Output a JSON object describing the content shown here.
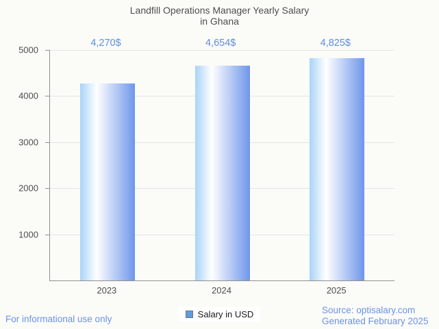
{
  "chart_data": {
    "type": "bar",
    "title": "Landfill Operations Manager Yearly Salary in Ghana",
    "title_lines": [
      "Landfill Operations Manager Yearly Salary",
      "in Ghana"
    ],
    "categories": [
      "2023",
      "2024",
      "2025"
    ],
    "values": [
      4270,
      4654,
      4825
    ],
    "value_labels": [
      "4,270$",
      "4,654$",
      "4,825$"
    ],
    "series": [
      {
        "name": "Salary in USD",
        "values": [
          4270,
          4654,
          4825
        ]
      }
    ],
    "xlabel": "",
    "ylabel": "",
    "ylim": [
      0,
      5000
    ],
    "yticks": [
      1000,
      2000,
      3000,
      4000,
      5000
    ],
    "ytick_labels": [
      "1000",
      "2000",
      "3000",
      "4000",
      "5000"
    ],
    "grid": true,
    "legend_position": "bottom"
  },
  "legend": {
    "label": "Salary in USD"
  },
  "footer": {
    "disclaimer": "For informational use only",
    "source": "Source: optisalary.com",
    "generated": "Generated February 2025"
  },
  "colors": {
    "background": "#fbfbf8",
    "title_text": "#4d4d4d",
    "axis_line": "#8f8f8f",
    "gridline": "#e5e5e5",
    "axis_label": "#4d4d4d",
    "value_label": "#5d8ed9",
    "bar_gradient_left": "#a9d3f8",
    "bar_gradient_mid": "#ffffff",
    "bar_gradient_right": "#6e96ea",
    "legend_marker_fill": "#5f9ce0",
    "legend_marker_border": "#757575",
    "footer_link": "#6b93e6"
  }
}
